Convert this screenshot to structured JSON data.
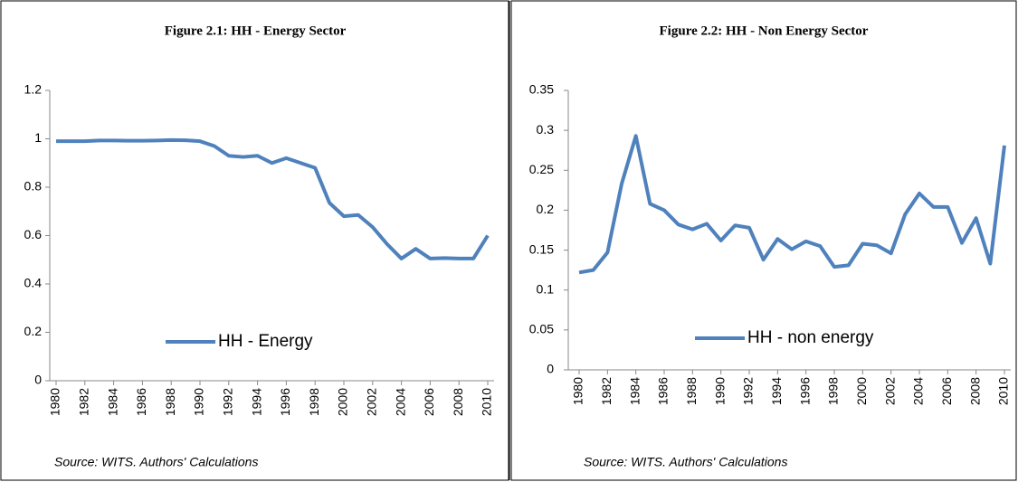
{
  "chart_data": [
    {
      "type": "line",
      "title": "Figure  2.1: HH - Energy Sector",
      "x": [
        1980,
        1981,
        1982,
        1983,
        1984,
        1985,
        1986,
        1987,
        1988,
        1989,
        1990,
        1991,
        1992,
        1993,
        1994,
        1995,
        1996,
        1997,
        1998,
        1999,
        2000,
        2001,
        2002,
        2003,
        2004,
        2005,
        2006,
        2007,
        2008,
        2009,
        2010
      ],
      "series": [
        {
          "name": "HH - Energy",
          "color": "#4f81bd",
          "values": [
            0.99,
            0.99,
            0.99,
            0.993,
            0.993,
            0.992,
            0.992,
            0.993,
            0.995,
            0.994,
            0.99,
            0.97,
            0.93,
            0.925,
            0.93,
            0.9,
            0.92,
            0.9,
            0.88,
            0.735,
            0.68,
            0.685,
            0.635,
            0.565,
            0.505,
            0.545,
            0.505,
            0.507,
            0.505,
            0.505,
            0.6
          ]
        }
      ],
      "xlim": [
        1980,
        2010
      ],
      "xticks": [
        1980,
        1982,
        1984,
        1986,
        1988,
        1990,
        1992,
        1994,
        1996,
        1998,
        2000,
        2002,
        2004,
        2006,
        2008,
        2010
      ],
      "ylim": [
        0,
        1.2
      ],
      "yticks": [
        0,
        0.2,
        0.4,
        0.6,
        0.8,
        1,
        1.2
      ],
      "source": "Source: WITS. Authors' Calculations"
    },
    {
      "type": "line",
      "title": "Figure 2.2: HH - Non Energy Sector",
      "x": [
        1980,
        1981,
        1982,
        1983,
        1984,
        1985,
        1986,
        1987,
        1988,
        1989,
        1990,
        1991,
        1992,
        1993,
        1994,
        1995,
        1996,
        1997,
        1998,
        1999,
        2000,
        2001,
        2002,
        2003,
        2004,
        2005,
        2006,
        2007,
        2008,
        2009,
        2010
      ],
      "series": [
        {
          "name": "HH - non energy",
          "color": "#4f81bd",
          "values": [
            0.122,
            0.125,
            0.147,
            0.233,
            0.293,
            0.208,
            0.2,
            0.182,
            0.176,
            0.183,
            0.162,
            0.181,
            0.178,
            0.138,
            0.164,
            0.151,
            0.161,
            0.155,
            0.129,
            0.131,
            0.158,
            0.156,
            0.146,
            0.195,
            0.221,
            0.204,
            0.204,
            0.159,
            0.19,
            0.133,
            0.281
          ]
        }
      ],
      "xlim": [
        1980,
        2010
      ],
      "xticks": [
        1980,
        1982,
        1984,
        1986,
        1988,
        1990,
        1992,
        1994,
        1996,
        1998,
        2000,
        2002,
        2004,
        2006,
        2008,
        2010
      ],
      "ylim": [
        0,
        0.35
      ],
      "yticks": [
        0,
        0.05,
        0.1,
        0.15,
        0.2,
        0.25,
        0.3,
        0.35
      ],
      "source": "Source: WITS. Authors' Calculations"
    }
  ]
}
